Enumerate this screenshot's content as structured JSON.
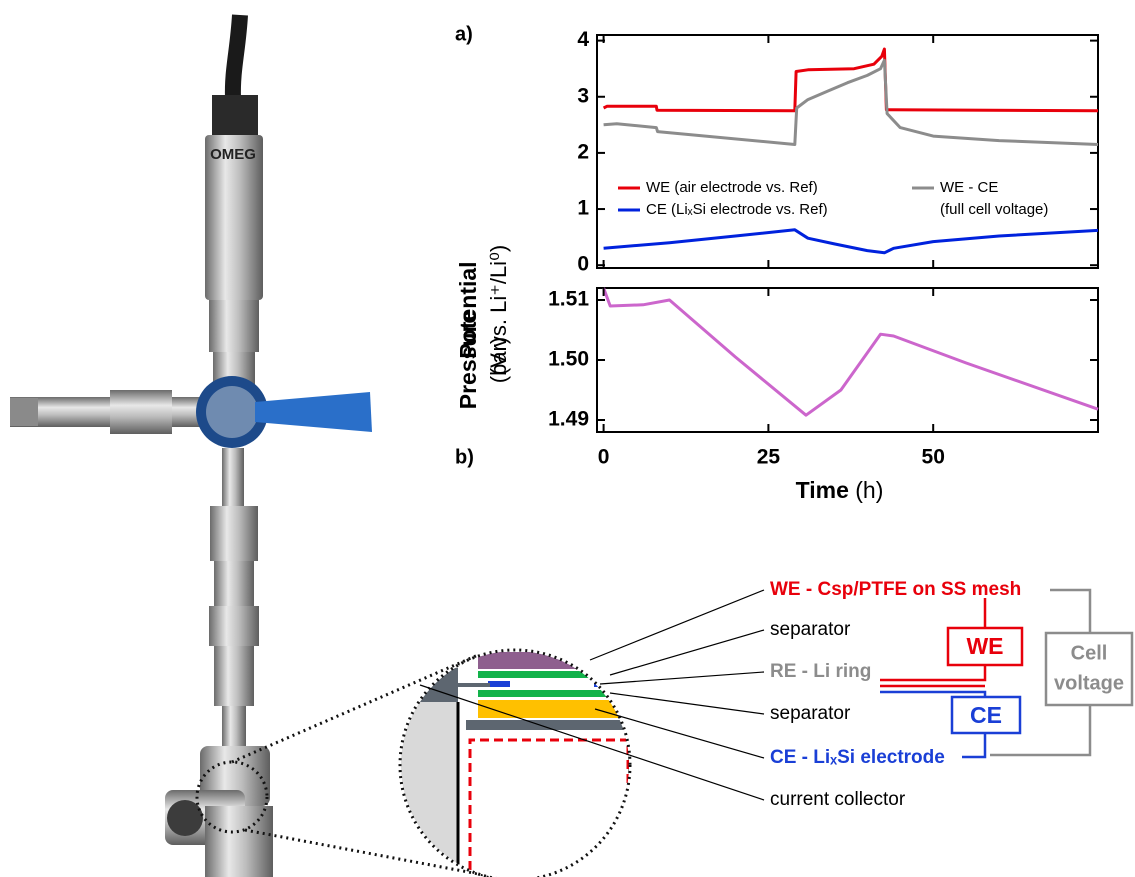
{
  "chart_data": [
    {
      "type": "line",
      "panel_label": "a)",
      "ylabel": [
        "Potential",
        "(V vs. Li⁺/Li⁰)"
      ],
      "xlim": [
        -1,
        75
      ],
      "xticks": [
        0,
        25,
        50
      ],
      "ylim": [
        -0.05,
        4.1
      ],
      "yticks": [
        0,
        1,
        2,
        3,
        4
      ],
      "series": [
        {
          "name": "WE (air electrode vs. Ref)",
          "color": "#e8000b",
          "x": [
            0,
            0.5,
            8,
            8.1,
            29,
            29.2,
            31,
            38,
            41,
            42.2,
            42.6,
            42.9,
            75
          ],
          "values": [
            2.8,
            2.83,
            2.83,
            2.76,
            2.75,
            3.45,
            3.48,
            3.5,
            3.58,
            3.72,
            3.85,
            2.77,
            2.75
          ]
        },
        {
          "name": "CE (LiₓSi electrode vs. Ref)",
          "color": "#0022dd",
          "x": [
            0,
            10,
            20,
            29,
            31,
            35,
            40,
            42.6,
            44,
            50,
            60,
            75
          ],
          "values": [
            0.3,
            0.4,
            0.52,
            0.63,
            0.48,
            0.38,
            0.26,
            0.22,
            0.3,
            0.42,
            0.52,
            0.62
          ]
        },
        {
          "name": "WE - CE",
          "subtitle": "(full cell voltage)",
          "color": "#8c8c8c",
          "x": [
            0,
            2,
            8,
            8.2,
            29,
            29.3,
            31,
            34,
            37,
            40,
            42,
            42.6,
            43,
            45,
            50,
            60,
            75
          ],
          "values": [
            2.5,
            2.52,
            2.45,
            2.38,
            2.15,
            2.8,
            2.95,
            3.1,
            3.25,
            3.38,
            3.5,
            3.65,
            2.7,
            2.45,
            2.3,
            2.22,
            2.15
          ]
        }
      ]
    },
    {
      "type": "line",
      "panel_label": "b)",
      "ylabel": [
        "Pressure",
        "(bar)"
      ],
      "xlabel": [
        "Time",
        "(h)"
      ],
      "xlim": [
        -1,
        75
      ],
      "xticks": [
        0,
        25,
        50
      ],
      "ylim": [
        1.488,
        1.512
      ],
      "yticks": [
        1.49,
        {
          "value": 1.5,
          "label": "1.50"
        },
        1.51
      ],
      "series": [
        {
          "name": "Pressure",
          "color": "#cc66cc",
          "x": [
            0,
            1,
            6,
            10,
            20,
            30.7,
            36,
            42,
            44,
            55,
            75
          ],
          "values": [
            1.512,
            1.509,
            1.5092,
            1.51,
            1.5005,
            1.4908,
            1.495,
            1.5043,
            1.504,
            1.4995,
            1.4918
          ]
        }
      ]
    }
  ],
  "photo": {
    "label": "OMEG"
  },
  "diagram": {
    "labels": [
      "WE - Csp/PTFE on SS mesh",
      "separator",
      "RE - Li ring",
      "separator",
      "CE - LiₓSi electrode",
      "current collector"
    ],
    "circuit": {
      "we": "WE",
      "ce": "CE",
      "cell": [
        "Cell",
        "voltage"
      ]
    }
  }
}
